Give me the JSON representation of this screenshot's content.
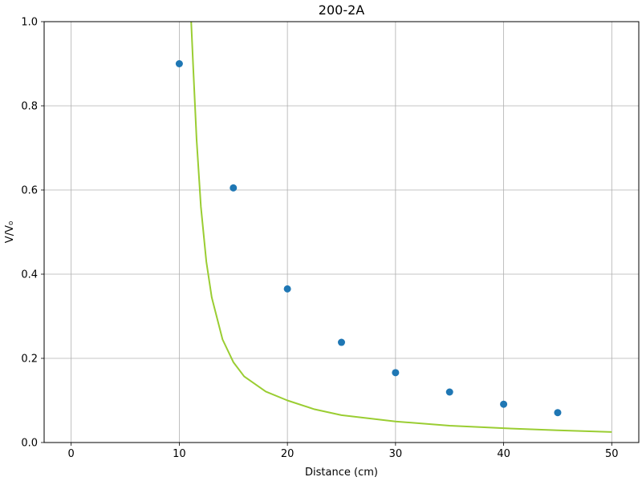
{
  "chart_data": {
    "type": "scatter",
    "title": "200-2A",
    "xlabel": "Distance (cm)",
    "ylabel": "V/V₀",
    "xlim": [
      -2.5,
      52.5
    ],
    "ylim": [
      0,
      1
    ],
    "xticks": [
      0,
      10,
      20,
      30,
      40,
      50
    ],
    "yticks": [
      0.0,
      0.2,
      0.4,
      0.6,
      0.8,
      1.0
    ],
    "xtick_labels": [
      "0",
      "10",
      "20",
      "30",
      "40",
      "50"
    ],
    "ytick_labels": [
      "0.0",
      "0.2",
      "0.4",
      "0.6",
      "0.8",
      "1.0"
    ],
    "grid": true,
    "series": [
      {
        "kind": "scatter",
        "color": "#1f77b4",
        "x": [
          10,
          15,
          20,
          25,
          30,
          35,
          40,
          45
        ],
        "y": [
          0.9,
          0.605,
          0.365,
          0.238,
          0.166,
          0.12,
          0.091,
          0.071
        ]
      },
      {
        "kind": "line",
        "color": "#9acd32",
        "x": [
          11.1,
          11.3,
          11.6,
          12,
          12.5,
          13,
          14,
          15,
          16,
          18,
          20,
          22.5,
          25,
          30,
          35,
          40,
          45,
          50
        ],
        "y": [
          1.0,
          0.885,
          0.72,
          0.56,
          0.43,
          0.345,
          0.245,
          0.191,
          0.157,
          0.121,
          0.1,
          0.079,
          0.065,
          0.05,
          0.04,
          0.034,
          0.029,
          0.025
        ]
      }
    ]
  }
}
